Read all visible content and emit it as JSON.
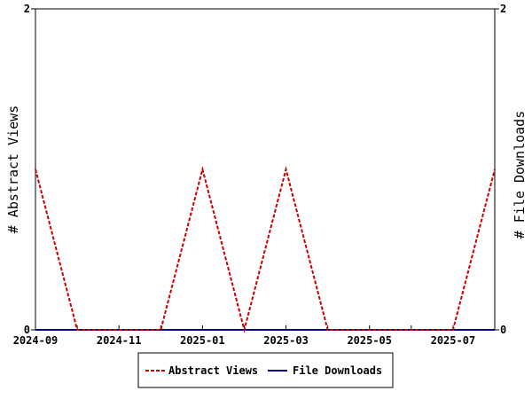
{
  "chart_data": {
    "type": "line",
    "x": [
      "2024-09",
      "2024-10",
      "2024-11",
      "2024-12",
      "2025-01",
      "2025-02",
      "2025-03",
      "2025-04",
      "2025-05",
      "2025-06",
      "2025-07",
      "2025-08"
    ],
    "x_tick_labels": [
      "2024-09",
      "2024-11",
      "2025-01",
      "2025-03",
      "2025-05",
      "2025-07"
    ],
    "series": [
      {
        "name": "Abstract Views",
        "values": [
          1,
          0,
          0,
          0,
          1,
          0,
          1,
          0,
          0,
          0,
          0,
          1
        ],
        "color": "#cc0000",
        "style": "dashed",
        "axis": "left"
      },
      {
        "name": "File Downloads",
        "values": [
          0,
          0,
          0,
          0,
          0,
          0,
          0,
          0,
          0,
          0,
          0,
          0
        ],
        "color": "#000099",
        "style": "solid",
        "axis": "right"
      }
    ],
    "ylabel": "# Abstract Views",
    "y2label": "# File Downloads",
    "ylim": [
      0,
      2
    ],
    "y2lim": [
      0,
      2
    ],
    "y_tick_labels": [
      "0",
      "2"
    ],
    "y2_tick_labels": [
      "0",
      "2"
    ],
    "grid": false,
    "legend_position": "bottom"
  }
}
